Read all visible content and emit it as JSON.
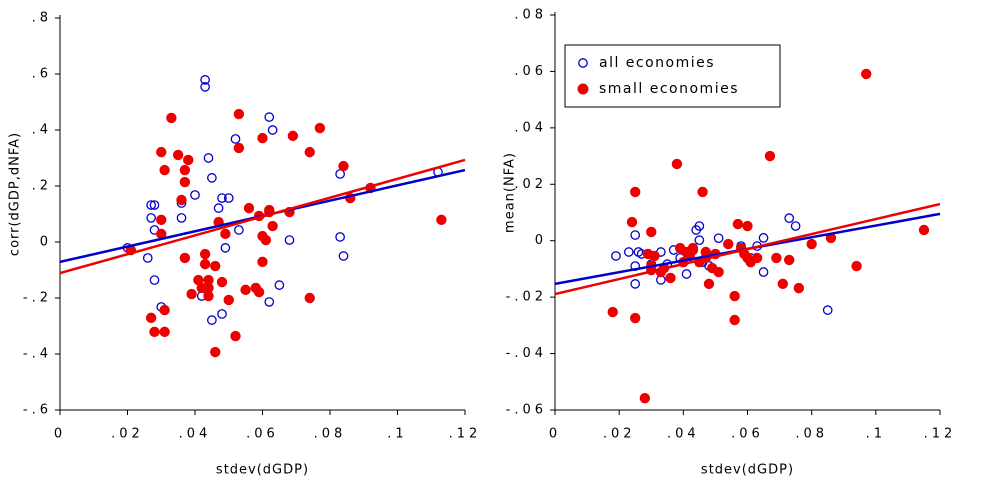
{
  "chart_data": [
    {
      "type": "scatter",
      "xlabel": "stdev(dGDP)",
      "ylabel": "corr(dGDP,dNFA)",
      "xlim": [
        0,
        0.12
      ],
      "xticks": [
        0,
        {
          "value": 0.02,
          "label": ".02"
        },
        {
          "value": 0.04,
          "label": ".04"
        },
        {
          "value": 0.06,
          "label": ".06"
        },
        {
          "value": 0.08,
          "label": ".08"
        },
        {
          "value": 0.1,
          "label": ".1"
        },
        {
          "value": 0.12,
          "label": ".12"
        }
      ],
      "ylim": [
        -0.6,
        0.8
      ],
      "yticks": [
        {
          "value": -0.6,
          "label": "-.6"
        },
        {
          "value": -0.4,
          "label": "-.4"
        },
        {
          "value": -0.2,
          "label": "-.2"
        },
        0,
        {
          "value": 0.2,
          "label": ".2"
        },
        {
          "value": 0.4,
          "label": ".4"
        },
        {
          "value": 0.6,
          "label": ".6"
        },
        {
          "value": 0.8,
          "label": ".8"
        }
      ],
      "series": [
        {
          "color": "#0000cc",
          "marker": "open",
          "x": [
            0.02,
            0.026,
            0.027,
            0.027,
            0.028,
            0.028,
            0.028,
            0.03,
            0.036,
            0.036,
            0.04,
            0.043,
            0.043,
            0.044,
            0.045,
            0.047,
            0.048,
            0.049,
            0.05,
            0.042,
            0.045,
            0.048,
            0.052,
            0.053,
            0.062,
            0.062,
            0.063,
            0.065,
            0.068,
            0.083,
            0.083,
            0.084,
            0.112
          ],
          "values": [
            -0.021,
            -0.057,
            0.086,
            0.132,
            0.043,
            0.132,
            -0.136,
            -0.232,
            0.139,
            0.086,
            0.168,
            0.579,
            0.554,
            0.3,
            0.229,
            0.121,
            0.157,
            -0.021,
            0.157,
            -0.193,
            -0.279,
            -0.257,
            0.368,
            0.043,
            0.446,
            -0.214,
            0.4,
            -0.154,
            0.007,
            0.018,
            0.243,
            -0.05,
            0.25
          ]
        },
        {
          "color": "#ee0000",
          "marker": "filled",
          "x": [
            0.021,
            0.027,
            0.028,
            0.03,
            0.03,
            0.03,
            0.031,
            0.031,
            0.031,
            0.033,
            0.035,
            0.036,
            0.037,
            0.037,
            0.037,
            0.038,
            0.039,
            0.041,
            0.042,
            0.043,
            0.043,
            0.044,
            0.044,
            0.044,
            0.046,
            0.046,
            0.047,
            0.048,
            0.049,
            0.05,
            0.052,
            0.053,
            0.053,
            0.055,
            0.056,
            0.058,
            0.059,
            0.059,
            0.06,
            0.06,
            0.06,
            0.061,
            0.062,
            0.062,
            0.063,
            0.068,
            0.069,
            0.074,
            0.074,
            0.077,
            0.084,
            0.086,
            0.092,
            0.113
          ],
          "values": [
            -0.029,
            -0.271,
            -0.321,
            0.029,
            0.079,
            0.321,
            -0.243,
            -0.321,
            0.257,
            0.443,
            0.311,
            0.15,
            0.214,
            0.257,
            -0.057,
            0.293,
            -0.186,
            -0.136,
            -0.164,
            -0.079,
            -0.043,
            -0.164,
            -0.193,
            -0.136,
            -0.086,
            -0.393,
            0.071,
            -0.143,
            0.029,
            -0.207,
            -0.336,
            0.457,
            0.336,
            -0.171,
            0.121,
            -0.164,
            -0.179,
            0.093,
            0.021,
            -0.071,
            0.371,
            0.007,
            0.107,
            0.114,
            0.057,
            0.107,
            0.379,
            0.321,
            -0.2,
            0.407,
            0.271,
            0.157,
            0.193,
            0.079
          ]
        }
      ],
      "fit_lines": [
        {
          "color": "#0000cc",
          "x": [
            0,
            0.12
          ],
          "values": [
            -0.071,
            0.257
          ]
        },
        {
          "color": "#ee0000",
          "x": [
            0,
            0.12
          ],
          "values": [
            -0.111,
            0.293
          ]
        }
      ]
    },
    {
      "type": "scatter",
      "xlabel": "stdev(dGDP)",
      "ylabel": "mean(NFA)",
      "legend": "upper left",
      "xlim": [
        0,
        0.12
      ],
      "xticks": [
        0,
        {
          "value": 0.02,
          "label": ".02"
        },
        {
          "value": 0.04,
          "label": ".04"
        },
        {
          "value": 0.06,
          "label": ".06"
        },
        {
          "value": 0.08,
          "label": ".08"
        },
        {
          "value": 0.1,
          "label": ".1"
        },
        {
          "value": 0.12,
          "label": ".12"
        }
      ],
      "ylim": [
        -0.06,
        0.08
      ],
      "yticks": [
        {
          "value": -0.06,
          "label": "-.06"
        },
        {
          "value": -0.04,
          "label": "-.04"
        },
        {
          "value": -0.02,
          "label": "-.02"
        },
        0,
        {
          "value": 0.02,
          "label": ".02"
        },
        {
          "value": 0.04,
          "label": ".04"
        },
        {
          "value": 0.06,
          "label": ".06"
        },
        {
          "value": 0.08,
          "label": ".08"
        }
      ],
      "series": [
        {
          "name": "all economies",
          "color": "#0000cc",
          "marker": "open",
          "x": [
            0.019,
            0.023,
            0.025,
            0.025,
            0.025,
            0.026,
            0.027,
            0.03,
            0.033,
            0.033,
            0.035,
            0.037,
            0.039,
            0.041,
            0.044,
            0.045,
            0.045,
            0.046,
            0.048,
            0.048,
            0.051,
            0.058,
            0.061,
            0.063,
            0.065,
            0.065,
            0.073,
            0.075,
            0.085
          ],
          "values": [
            -0.0054,
            -0.004,
            0.002,
            -0.009,
            -0.0153,
            -0.004,
            -0.0047,
            -0.0083,
            -0.004,
            -0.0139,
            -0.0083,
            -0.0033,
            -0.0061,
            -0.0118,
            0.0038,
            0.0052,
            0.0002,
            -0.0076,
            -0.0153,
            -0.0089,
            0.0009,
            -0.0019,
            -0.0061,
            -0.0019,
            -0.0111,
            0.001,
            0.008,
            0.0052,
            -0.0246
          ]
        },
        {
          "name": "small economies",
          "color": "#ee0000",
          "marker": "filled",
          "x": [
            0.018,
            0.024,
            0.025,
            0.025,
            0.028,
            0.029,
            0.03,
            0.03,
            0.03,
            0.031,
            0.033,
            0.034,
            0.036,
            0.038,
            0.039,
            0.04,
            0.041,
            0.042,
            0.043,
            0.043,
            0.045,
            0.046,
            0.047,
            0.047,
            0.048,
            0.049,
            0.05,
            0.051,
            0.054,
            0.056,
            0.056,
            0.057,
            0.058,
            0.059,
            0.06,
            0.06,
            0.061,
            0.063,
            0.067,
            0.069,
            0.071,
            0.073,
            0.076,
            0.08,
            0.086,
            0.094,
            0.097,
            0.115
          ],
          "values": [
            -0.0253,
            0.0066,
            0.0173,
            -0.0274,
            -0.0558,
            -0.0047,
            -0.009,
            -0.0104,
            0.0031,
            -0.0054,
            -0.0111,
            -0.0097,
            -0.0132,
            0.0272,
            -0.0026,
            -0.0076,
            -0.004,
            -0.0054,
            -0.0026,
            -0.0033,
            -0.0076,
            0.0173,
            -0.0061,
            -0.004,
            -0.0153,
            -0.0097,
            -0.0047,
            -0.0111,
            -0.0012,
            -0.0281,
            -0.0196,
            0.0059,
            -0.0026,
            -0.0047,
            0.0052,
            -0.0061,
            -0.0076,
            -0.0061,
            0.03,
            -0.0061,
            -0.0153,
            -0.0068,
            -0.0168,
            -0.0012,
            0.001,
            -0.009,
            0.0591,
            0.0038
          ]
        }
      ],
      "fit_lines": [
        {
          "color": "#0000cc",
          "x": [
            0,
            0.12
          ],
          "values": [
            -0.0153,
            0.0095
          ]
        },
        {
          "color": "#ee0000",
          "x": [
            0,
            0.12
          ],
          "values": [
            -0.0189,
            0.013
          ]
        }
      ]
    }
  ]
}
